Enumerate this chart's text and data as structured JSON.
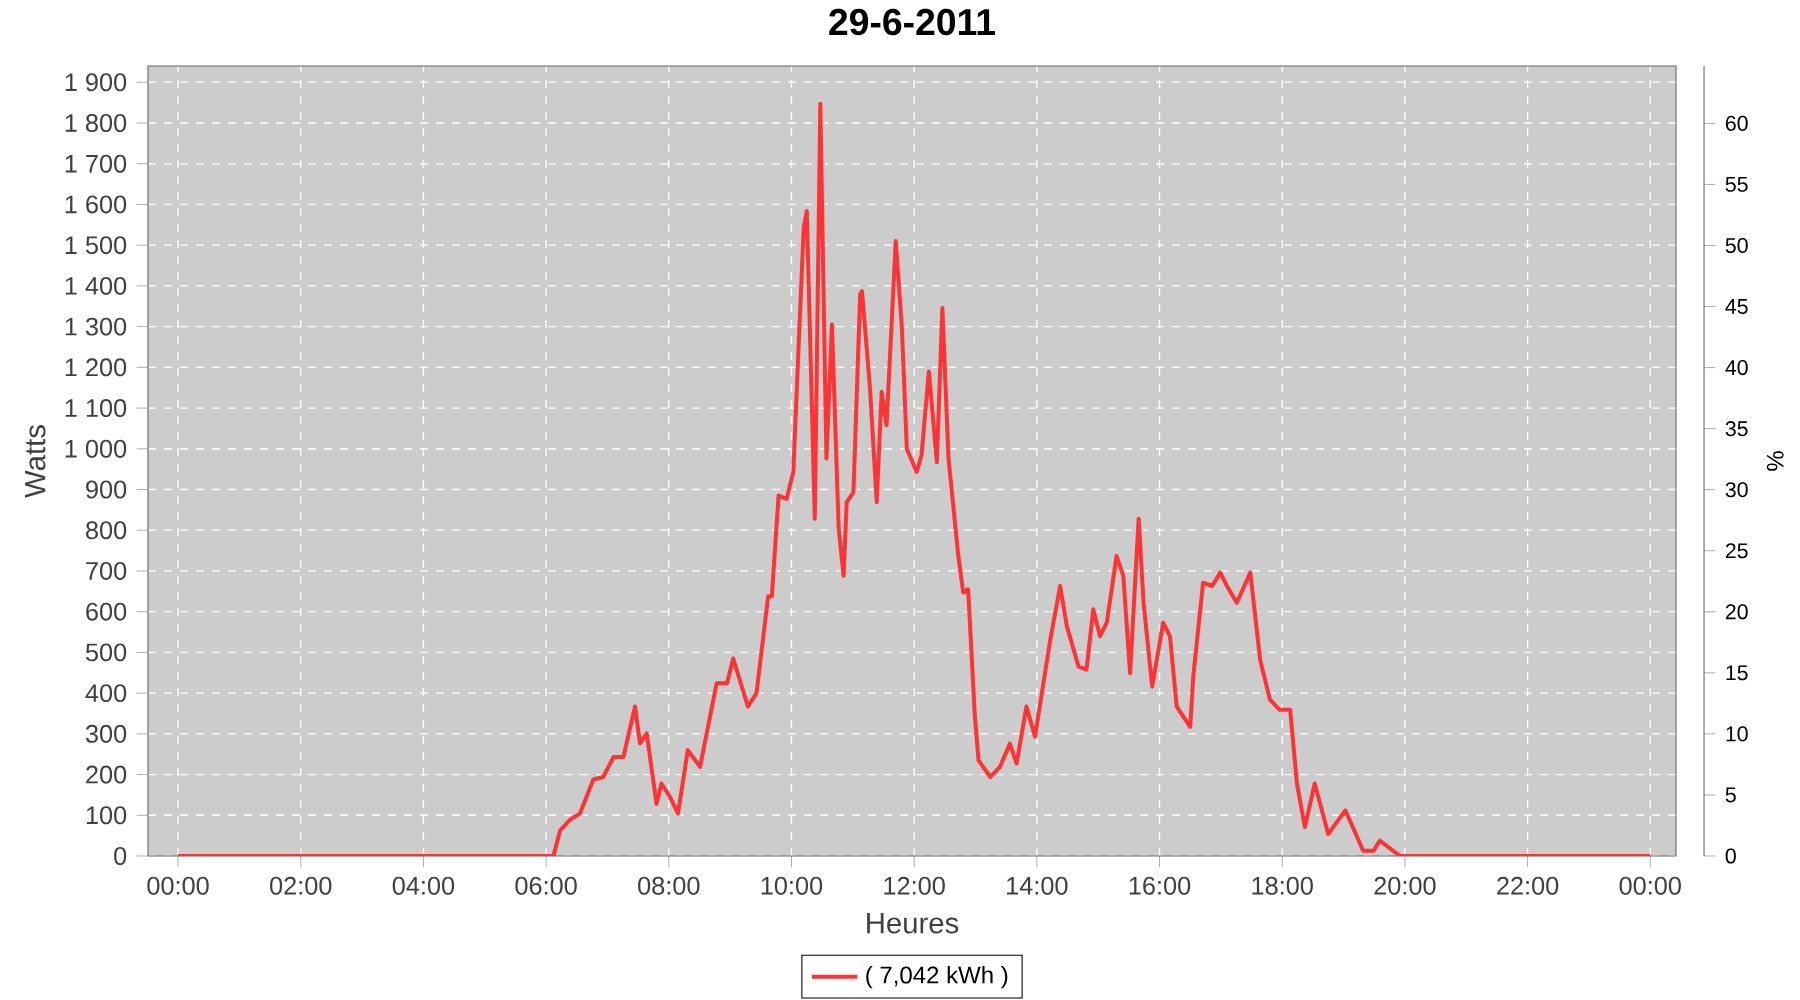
{
  "chart_data": {
    "type": "line",
    "title": "29-6-2011",
    "xlabel": "Heures",
    "ylabel": "Watts",
    "y2label": "%",
    "x": [
      0,
      6.12,
      6.23,
      6.39,
      6.55,
      6.77,
      6.93,
      7.1,
      7.26,
      7.45,
      7.53,
      7.64,
      7.8,
      7.88,
      8.02,
      8.15,
      8.31,
      8.51,
      8.78,
      8.95,
      9.05,
      9.29,
      9.43,
      9.62,
      9.68,
      9.79,
      9.92,
      10.03,
      10.11,
      10.2,
      10.25,
      10.38,
      10.47,
      10.57,
      10.66,
      10.77,
      10.85,
      10.9,
      11.01,
      11.12,
      11.15,
      11.28,
      11.39,
      11.47,
      11.55,
      11.7,
      11.8,
      11.88,
      12.04,
      12.12,
      12.24,
      12.37,
      12.46,
      12.56,
      12.72,
      12.8,
      12.88,
      12.99,
      13.05,
      13.24,
      13.4,
      13.56,
      13.67,
      13.83,
      13.97,
      14.22,
      14.38,
      14.49,
      14.68,
      14.81,
      14.92,
      15.03,
      15.14,
      15.3,
      15.41,
      15.52,
      15.66,
      15.74,
      15.88,
      16.06,
      16.17,
      16.28,
      16.5,
      16.55,
      16.71,
      16.86,
      16.99,
      17.1,
      17.26,
      17.48,
      17.64,
      17.8,
      17.96,
      18.13,
      18.24,
      18.37,
      18.53,
      18.75,
      19.03,
      19.32,
      19.49,
      19.59,
      19.92,
      24
    ],
    "series": [
      {
        "name": "( 7,042 kWh )",
        "color": "#ff3333",
        "values": [
          0,
          0,
          63,
          89,
          104,
          188,
          194,
          243,
          243,
          367,
          276,
          301,
          128,
          178,
          145,
          104,
          260,
          219,
          424,
          424,
          485,
          367,
          400,
          638,
          638,
          885,
          877,
          943,
          1230,
          1543,
          1584,
          828,
          1847,
          976,
          1305,
          803,
          688,
          869,
          893,
          1379,
          1387,
          1149,
          869,
          1140,
          1058,
          1510,
          1297,
          1000,
          943,
          984,
          1190,
          967,
          1346,
          976,
          737,
          647,
          655,
          342,
          235,
          194,
          219,
          276,
          227,
          367,
          293,
          532,
          663,
          564,
          465,
          458,
          606,
          540,
          573,
          737,
          688,
          449,
          828,
          622,
          416,
          573,
          540,
          367,
          317,
          441,
          671,
          663,
          696,
          663,
          622,
          696,
          482,
          384,
          359,
          359,
          178,
          71,
          178,
          54,
          112,
          13,
          13,
          38,
          0,
          0
        ]
      }
    ],
    "xlim": [
      -0.49,
      24.42
    ],
    "ylim": [
      0,
      1940
    ],
    "y2lim": [
      0,
      64.7
    ],
    "xticks": [
      {
        "value": 0,
        "label": "00:00"
      },
      {
        "value": 2,
        "label": "02:00"
      },
      {
        "value": 4,
        "label": "04:00"
      },
      {
        "value": 6,
        "label": "06:00"
      },
      {
        "value": 8,
        "label": "08:00"
      },
      {
        "value": 10,
        "label": "10:00"
      },
      {
        "value": 12,
        "label": "12:00"
      },
      {
        "value": 14,
        "label": "14:00"
      },
      {
        "value": 16,
        "label": "16:00"
      },
      {
        "value": 18,
        "label": "18:00"
      },
      {
        "value": 20,
        "label": "20:00"
      },
      {
        "value": 22,
        "label": "22:00"
      },
      {
        "value": 24,
        "label": "00:00"
      }
    ],
    "yticks": [
      0,
      100,
      200,
      300,
      400,
      500,
      600,
      700,
      800,
      900,
      {
        "value": 1000,
        "label": "1 000"
      },
      {
        "value": 1100,
        "label": "1 100"
      },
      {
        "value": 1200,
        "label": "1 200"
      },
      {
        "value": 1300,
        "label": "1 300"
      },
      {
        "value": 1400,
        "label": "1 400"
      },
      {
        "value": 1500,
        "label": "1 500"
      },
      {
        "value": 1600,
        "label": "1 600"
      },
      {
        "value": 1700,
        "label": "1 700"
      },
      {
        "value": 1800,
        "label": "1 800"
      },
      {
        "value": 1900,
        "label": "1 900"
      }
    ],
    "y2ticks": [
      0,
      5,
      10,
      15,
      20,
      25,
      30,
      35,
      40,
      45,
      50,
      55,
      60
    ],
    "grid": true,
    "legend": "bottom",
    "line_style": "solid"
  }
}
